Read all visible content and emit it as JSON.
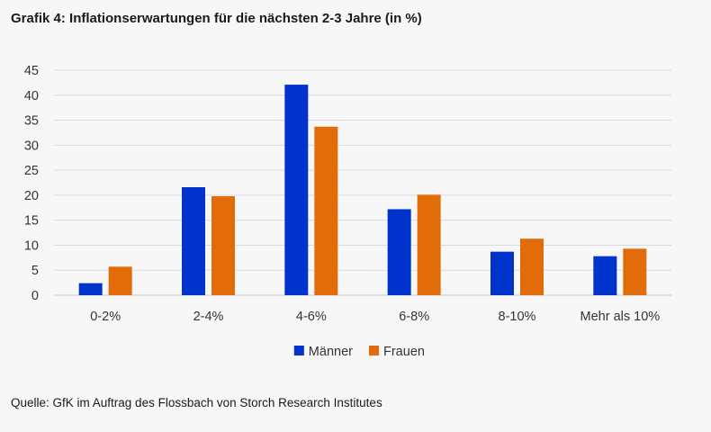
{
  "title": "Grafik 4: Inflationserwartungen für die nächsten 2-3 Jahre (in %)",
  "source": "Quelle: GfK im Auftrag des Flossbach von Storch Research Institutes",
  "chart_data": {
    "type": "bar",
    "categories": [
      "0-2%",
      "2-4%",
      "4-6%",
      "6-8%",
      "8-10%",
      "Mehr als 10%"
    ],
    "series": [
      {
        "name": "Männer",
        "color": "#0033cc",
        "values": [
          2.4,
          21.6,
          42.1,
          17.2,
          8.7,
          7.8
        ]
      },
      {
        "name": "Frauen",
        "color": "#e36c0a",
        "values": [
          5.7,
          19.8,
          33.7,
          20.1,
          11.3,
          9.3
        ]
      }
    ],
    "ylim": [
      0,
      45
    ],
    "yticks": [
      0,
      5,
      10,
      15,
      20,
      25,
      30,
      35,
      40,
      45
    ],
    "grid": true,
    "legend_position": "bottom"
  }
}
